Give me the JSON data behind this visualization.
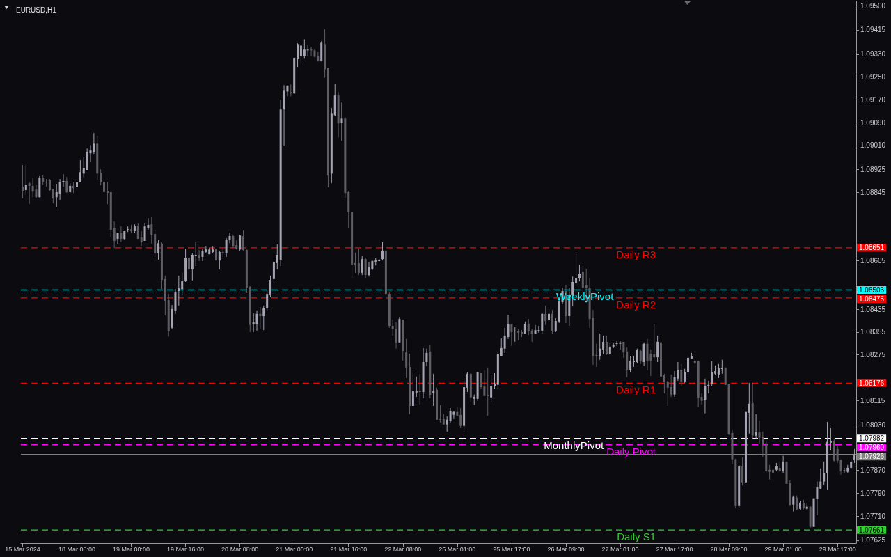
{
  "chart_data": {
    "type": "candlestick",
    "title": "EURUSD,H1",
    "categories": [
      "15 Mar 2024",
      null,
      null,
      null,
      null,
      null,
      null,
      null,
      null,
      null,
      null,
      null,
      null,
      null,
      null,
      null,
      "18 Mar 08:00",
      null,
      null,
      null,
      null,
      null,
      null,
      null,
      null,
      null,
      null,
      null,
      null,
      null,
      null,
      null,
      "19 Mar 00:00",
      null,
      null,
      null,
      null,
      null,
      null,
      null,
      null,
      null,
      null,
      null,
      null,
      null,
      null,
      null,
      "19 Mar 16:00",
      null,
      null,
      null,
      null,
      null,
      null,
      null,
      null,
      null,
      null,
      null,
      null,
      null,
      null,
      null,
      "20 Mar 08:00",
      null,
      null,
      null,
      null,
      null,
      null,
      null,
      null,
      null,
      null,
      null,
      null,
      null,
      null,
      null,
      "21 Mar 00:00",
      null,
      null,
      null,
      null,
      null,
      null,
      null,
      null,
      null,
      null,
      null,
      null,
      null,
      null,
      null,
      "21 Mar 16:00",
      null,
      null,
      null,
      null,
      null,
      null,
      null,
      null,
      null,
      null,
      null,
      null,
      null,
      null,
      null,
      "22 Mar 08:00",
      null,
      null,
      null,
      null,
      null,
      null,
      null,
      null,
      null,
      null,
      null,
      null,
      null,
      null,
      null,
      "25 Mar 01:00",
      null,
      null,
      null,
      null,
      null,
      null,
      null,
      null,
      null,
      null,
      null,
      null,
      null,
      null,
      null,
      "25 Mar 17:00",
      null,
      null,
      null,
      null,
      null,
      null,
      null,
      null,
      null,
      null,
      null,
      null,
      null,
      null,
      null,
      "26 Mar 09:00",
      null,
      null,
      null,
      null,
      null,
      null,
      null,
      null,
      null,
      null,
      null,
      null,
      null,
      null,
      null,
      "27 Mar 01:00",
      null,
      null,
      null,
      null,
      null,
      null,
      null,
      null,
      null,
      null,
      null,
      null,
      null,
      null,
      null,
      "27 Mar 17:00",
      null,
      null,
      null,
      null,
      null,
      null,
      null,
      null,
      null,
      null,
      null,
      null,
      null,
      null,
      null,
      "28 Mar 09:00",
      null,
      null,
      null,
      null,
      null,
      null,
      null,
      null,
      null,
      null,
      null,
      null,
      null,
      null,
      null,
      "29 Mar 01:00",
      null,
      null,
      null,
      null,
      null,
      null,
      null,
      null,
      null,
      null,
      null,
      null,
      null,
      null,
      null,
      "29 Mar 17:00",
      null,
      null,
      null,
      null,
      null
    ],
    "ohlc": [
      [
        1.08865,
        1.08941,
        1.08824,
        1.08848
      ],
      [
        1.08853,
        1.08936,
        1.08836,
        1.08872
      ],
      [
        1.08877,
        1.08882,
        1.08804,
        1.08868
      ],
      [
        1.08868,
        1.08894,
        1.08828,
        1.08848
      ],
      [
        1.08855,
        1.08872,
        1.08824,
        1.08828
      ],
      [
        1.08828,
        1.08902,
        1.08828,
        1.08897
      ],
      [
        1.08897,
        1.08907,
        1.08872,
        1.08882
      ],
      [
        1.08882,
        1.08892,
        1.08865,
        1.0888
      ],
      [
        1.08889,
        1.08892,
        1.0885,
        1.08853
      ],
      [
        1.08858,
        1.08858,
        1.08807,
        1.08824
      ],
      [
        1.08828,
        1.08875,
        1.08794,
        1.08846
      ],
      [
        1.08841,
        1.08892,
        1.08819,
        1.08882
      ],
      [
        1.0888,
        1.08909,
        1.08865,
        1.08885
      ],
      [
        1.08885,
        1.08899,
        1.08843,
        1.08846
      ],
      [
        1.08846,
        1.08877,
        1.08843,
        1.08868
      ],
      [
        1.08868,
        1.08882,
        1.08843,
        1.0886
      ],
      [
        1.08863,
        1.08887,
        1.0886,
        1.0888
      ],
      [
        1.0888,
        1.08958,
        1.0888,
        1.08916
      ],
      [
        1.08911,
        1.0897,
        1.08899,
        1.08931
      ],
      [
        1.08924,
        1.08999,
        1.08924,
        1.08987
      ],
      [
        1.08982,
        1.09011,
        1.08953,
        1.08992
      ],
      [
        1.08987,
        1.09053,
        1.0898,
        1.09016
      ],
      [
        1.09016,
        1.09043,
        1.08889,
        1.08911
      ],
      [
        1.08914,
        1.08926,
        1.0887,
        1.0888
      ],
      [
        1.08882,
        1.08926,
        1.08838,
        1.08846
      ],
      [
        1.0885,
        1.08882,
        1.08804,
        1.08843
      ],
      [
        1.08846,
        1.08846,
        1.08689,
        1.08714
      ],
      [
        1.08721,
        1.08743,
        1.0865,
        1.08675
      ],
      [
        1.08682,
        1.08704,
        1.08665,
        1.08702
      ],
      [
        1.08702,
        1.08726,
        1.0867,
        1.08682
      ],
      [
        1.08682,
        1.08709,
        1.0868,
        1.08709
      ],
      [
        1.08714,
        1.08726,
        1.08706,
        1.08716
      ],
      [
        1.08716,
        1.08731,
        1.08704,
        1.08709
      ],
      [
        1.08709,
        1.08733,
        1.08702,
        1.08726
      ],
      [
        1.08726,
        1.08736,
        1.08682,
        1.08682
      ],
      [
        1.08687,
        1.08709,
        1.08658,
        1.08672
      ],
      [
        1.08675,
        1.08738,
        1.08675,
        1.08726
      ],
      [
        1.08721,
        1.08755,
        1.08714,
        1.08731
      ],
      [
        1.08733,
        1.08758,
        1.08665,
        1.08697
      ],
      [
        1.08699,
        1.08714,
        1.08619,
        1.08631
      ],
      [
        1.08633,
        1.08677,
        1.08609,
        1.08667
      ],
      [
        1.08665,
        1.0867,
        1.08506,
        1.08538
      ],
      [
        1.08541,
        1.08553,
        1.08414,
        1.08465
      ],
      [
        1.08467,
        1.08489,
        1.0834,
        1.08358
      ],
      [
        1.0837,
        1.0845,
        1.08367,
        1.08436
      ],
      [
        1.08431,
        1.08506,
        1.08419,
        1.08494
      ],
      [
        1.08499,
        1.08553,
        1.08448,
        1.08509
      ],
      [
        1.08506,
        1.08563,
        1.08487,
        1.08533
      ],
      [
        1.08533,
        1.08648,
        1.08531,
        1.08616
      ],
      [
        1.08616,
        1.08616,
        1.08526,
        1.08575
      ],
      [
        1.08575,
        1.08631,
        1.08536,
        1.08626
      ],
      [
        1.08624,
        1.0867,
        1.08587,
        1.08626
      ],
      [
        1.08626,
        1.08643,
        1.08604,
        1.08614
      ],
      [
        1.08619,
        1.08648,
        1.08604,
        1.08641
      ],
      [
        1.08636,
        1.08655,
        1.08633,
        1.08645
      ],
      [
        1.08628,
        1.0865,
        1.08628,
        1.08645
      ],
      [
        1.08636,
        1.08655,
        1.08631,
        1.08645
      ],
      [
        1.08648,
        1.08658,
        1.08606,
        1.08606
      ],
      [
        1.08606,
        1.08641,
        1.08575,
        1.08636
      ],
      [
        1.08636,
        1.08648,
        1.08619,
        1.08633
      ],
      [
        1.08631,
        1.08685,
        1.08619,
        1.0868
      ],
      [
        1.0868,
        1.08704,
        1.08667,
        1.08692
      ],
      [
        1.08692,
        1.08697,
        1.0865,
        1.08655
      ],
      [
        1.0866,
        1.08677,
        1.08645,
        1.08648
      ],
      [
        1.08645,
        1.08697,
        1.08641,
        1.08694
      ],
      [
        1.08692,
        1.08711,
        1.08641,
        1.08643
      ],
      [
        1.08643,
        1.08645,
        1.08492,
        1.08511
      ],
      [
        1.08514,
        1.08516,
        1.08355,
        1.0838
      ],
      [
        1.08382,
        1.08421,
        1.08355,
        1.08389
      ],
      [
        1.08384,
        1.08431,
        1.0836,
        1.08419
      ],
      [
        1.08419,
        1.08443,
        1.08367,
        1.08411
      ],
      [
        1.08411,
        1.08448,
        1.08362,
        1.08438
      ],
      [
        1.08438,
        1.08502,
        1.08428,
        1.08489
      ],
      [
        1.08487,
        1.08553,
        1.08477,
        1.08538
      ],
      [
        1.08541,
        1.08604,
        1.08526,
        1.08599
      ],
      [
        1.08597,
        1.08663,
        1.08575,
        1.08626
      ],
      [
        1.08609,
        1.0917,
        1.08587,
        1.09136
      ],
      [
        1.09136,
        1.09221,
        1.09009,
        1.09204
      ],
      [
        1.09199,
        1.09221,
        1.09182,
        1.09219
      ],
      [
        1.09197,
        1.09224,
        1.09182,
        1.09192
      ],
      [
        1.09192,
        1.09319,
        1.0919,
        1.09316
      ],
      [
        1.09312,
        1.09368,
        1.09285,
        1.09365
      ],
      [
        1.09324,
        1.09365,
        1.09297,
        1.0936
      ],
      [
        1.09324,
        1.09382,
        1.09314,
        1.09346
      ],
      [
        1.09343,
        1.09363,
        1.09324,
        1.09346
      ],
      [
        1.09346,
        1.09356,
        1.09324,
        1.09343
      ],
      [
        1.09343,
        1.09348,
        1.09319,
        1.09321
      ],
      [
        1.09324,
        1.09338,
        1.09304,
        1.09307
      ],
      [
        1.09307,
        1.09375,
        1.09304,
        1.0937
      ],
      [
        1.09365,
        1.09417,
        1.09248,
        1.09277
      ],
      [
        1.09282,
        1.09282,
        1.08863,
        1.08904
      ],
      [
        1.08911,
        1.09141,
        1.08877,
        1.09121
      ],
      [
        1.09116,
        1.09226,
        1.09112,
        1.09185
      ],
      [
        1.09185,
        1.09197,
        1.09038,
        1.09087
      ],
      [
        1.0909,
        1.0916,
        1.09026,
        1.09104
      ],
      [
        1.09104,
        1.09109,
        1.08826,
        1.08843
      ],
      [
        1.08846,
        1.0885,
        1.08719,
        1.08775
      ],
      [
        1.08777,
        1.08777,
        1.08545,
        1.08592
      ],
      [
        1.08597,
        1.08633,
        1.08563,
        1.08589
      ],
      [
        1.08597,
        1.08648,
        1.08555,
        1.08563
      ],
      [
        1.08563,
        1.08621,
        1.08555,
        1.08611
      ],
      [
        1.08611,
        1.08616,
        1.08543,
        1.08555
      ],
      [
        1.08555,
        1.08602,
        1.0855,
        1.08582
      ],
      [
        1.08577,
        1.08606,
        1.08572,
        1.08604
      ],
      [
        1.08602,
        1.08616,
        1.08589,
        1.08606
      ],
      [
        1.08604,
        1.08616,
        1.08599,
        1.08609
      ],
      [
        1.08611,
        1.0867,
        1.08606,
        1.08641
      ],
      [
        1.08641,
        1.08641,
        1.08484,
        1.08489
      ],
      [
        1.08489,
        1.08494,
        1.0837,
        1.08377
      ],
      [
        1.08377,
        1.08399,
        1.08343,
        1.08367
      ],
      [
        1.08367,
        1.08389,
        1.08297,
        1.08319
      ],
      [
        1.08319,
        1.08406,
        1.08319,
        1.08401
      ],
      [
        1.08399,
        1.08399,
        1.08255,
        1.08289
      ],
      [
        1.08284,
        1.08331,
        1.08194,
        1.08231
      ],
      [
        1.08233,
        1.08279,
        1.08067,
        1.08096
      ],
      [
        1.08096,
        1.08216,
        1.08096,
        1.08148
      ],
      [
        1.08143,
        1.08199,
        1.08128,
        1.0815
      ],
      [
        1.0815,
        1.08209,
        1.08101,
        1.08145
      ],
      [
        1.08145,
        1.08299,
        1.08123,
        1.0825
      ],
      [
        1.0825,
        1.08297,
        1.08236,
        1.08282
      ],
      [
        1.08287,
        1.08309,
        1.08123,
        1.08133
      ],
      [
        1.0814,
        1.08209,
        1.08096,
        1.0815
      ],
      [
        1.08153,
        1.0816,
        1.08048,
        1.08048
      ],
      [
        1.0805,
        1.08099,
        1.08038,
        1.08048
      ],
      [
        1.0805,
        1.08067,
        1.08031,
        1.08031
      ],
      [
        1.08031,
        1.0806,
        1.08006,
        1.08048
      ],
      [
        1.08043,
        1.08089,
        1.08038,
        1.08079
      ],
      [
        1.08065,
        1.08079,
        1.0805,
        1.08075
      ],
      [
        1.08075,
        1.08092,
        1.0806,
        1.08062
      ],
      [
        1.08065,
        1.08089,
        1.08018,
        1.08026
      ],
      [
        1.08026,
        1.08189,
        1.08014,
        1.08162
      ],
      [
        1.0816,
        1.08214,
        1.08145,
        1.08209
      ],
      [
        1.08209,
        1.08211,
        1.08109,
        1.08126
      ],
      [
        1.08121,
        1.08136,
        1.08099,
        1.08128
      ],
      [
        1.08121,
        1.08216,
        1.08114,
        1.08214
      ],
      [
        1.08211,
        1.08211,
        1.08155,
        1.08162
      ],
      [
        1.08165,
        1.08221,
        1.08131,
        1.08131
      ],
      [
        1.08133,
        1.08231,
        1.08062,
        1.08131
      ],
      [
        1.08126,
        1.08206,
        1.08109,
        1.08167
      ],
      [
        1.08165,
        1.08211,
        1.08155,
        1.08172
      ],
      [
        1.0817,
        1.08287,
        1.08157,
        1.08277
      ],
      [
        1.08272,
        1.08333,
        1.0827,
        1.08299
      ],
      [
        1.08297,
        1.0837,
        1.08282,
        1.08343
      ],
      [
        1.08338,
        1.08416,
        1.08331,
        1.08382
      ],
      [
        1.08384,
        1.08384,
        1.08306,
        1.08355
      ],
      [
        1.08358,
        1.08372,
        1.08321,
        1.0836
      ],
      [
        1.0836,
        1.08367,
        1.08326,
        1.08353
      ],
      [
        1.08355,
        1.08362,
        1.08338,
        1.08348
      ],
      [
        1.0835,
        1.08392,
        1.08348,
        1.08384
      ],
      [
        1.08384,
        1.08401,
        1.08345,
        1.08358
      ],
      [
        1.0836,
        1.08365,
        1.08321,
        1.0835
      ],
      [
        1.0835,
        1.0838,
        1.08348,
        1.08362
      ],
      [
        1.0836,
        1.08377,
        1.08353,
        1.08362
      ],
      [
        1.0836,
        1.08421,
        1.0835,
        1.08419
      ],
      [
        1.08419,
        1.08448,
        1.0838,
        1.08394
      ],
      [
        1.08397,
        1.08436,
        1.08389,
        1.08419
      ],
      [
        1.08419,
        1.08433,
        1.08348,
        1.0836
      ],
      [
        1.0836,
        1.08404,
        1.08355,
        1.08394
      ],
      [
        1.08392,
        1.08475,
        1.08387,
        1.08465
      ],
      [
        1.0846,
        1.08511,
        1.08453,
        1.08499
      ],
      [
        1.08499,
        1.08521,
        1.08387,
        1.08411
      ],
      [
        1.08411,
        1.08511,
        1.08377,
        1.08487
      ],
      [
        1.08484,
        1.0855,
        1.08445,
        1.08531
      ],
      [
        1.08526,
        1.08636,
        1.08521,
        1.08545
      ],
      [
        1.08543,
        1.08592,
        1.08533,
        1.0856
      ],
      [
        1.08567,
        1.08587,
        1.08477,
        1.08511
      ],
      [
        1.08519,
        1.08577,
        1.08458,
        1.08511
      ],
      [
        1.08509,
        1.08543,
        1.0837,
        1.08401
      ],
      [
        1.08404,
        1.08433,
        1.0824,
        1.08272
      ],
      [
        1.08275,
        1.08314,
        1.08233,
        1.08272
      ],
      [
        1.08272,
        1.0835,
        1.08258,
        1.08297
      ],
      [
        1.08294,
        1.08343,
        1.08279,
        1.08321
      ],
      [
        1.08321,
        1.08343,
        1.08275,
        1.08277
      ],
      [
        1.08277,
        1.08316,
        1.08275,
        1.08304
      ],
      [
        1.08304,
        1.08316,
        1.08299,
        1.08309
      ],
      [
        1.08314,
        1.08323,
        1.08306,
        1.08316
      ],
      [
        1.08314,
        1.08323,
        1.08294,
        1.08319
      ],
      [
        1.08321,
        1.08321,
        1.08265,
        1.08284
      ],
      [
        1.08287,
        1.08301,
        1.08197,
        1.08223
      ],
      [
        1.08223,
        1.0827,
        1.08214,
        1.08253
      ],
      [
        1.0825,
        1.08272,
        1.08233,
        1.08255
      ],
      [
        1.0825,
        1.08297,
        1.08245,
        1.08292
      ],
      [
        1.08289,
        1.08294,
        1.08243,
        1.08253
      ],
      [
        1.0825,
        1.08319,
        1.08236,
        1.08314
      ],
      [
        1.08314,
        1.08331,
        1.08221,
        1.08253
      ],
      [
        1.08279,
        1.08294,
        1.08201,
        1.08255
      ],
      [
        1.08277,
        1.08384,
        1.08258,
        1.08267
      ],
      [
        1.08267,
        1.08343,
        1.0825,
        1.08321
      ],
      [
        1.08319,
        1.08343,
        1.08172,
        1.08199
      ],
      [
        1.08204,
        1.08209,
        1.0814,
        1.08179
      ],
      [
        1.08182,
        1.08184,
        1.08096,
        1.0816
      ],
      [
        1.08162,
        1.08206,
        1.08128,
        1.08136
      ],
      [
        1.08136,
        1.08218,
        1.08128,
        1.08197
      ],
      [
        1.08192,
        1.0825,
        1.08184,
        1.08223
      ],
      [
        1.08223,
        1.08243,
        1.08165,
        1.08182
      ],
      [
        1.08182,
        1.08226,
        1.08177,
        1.08214
      ],
      [
        1.08214,
        1.0827,
        1.08197,
        1.08265
      ],
      [
        1.08262,
        1.08282,
        1.08262,
        1.08272
      ],
      [
        1.08255,
        1.08262,
        1.08243,
        1.08245
      ],
      [
        1.08253,
        1.08255,
        1.08092,
        1.08126
      ],
      [
        1.08128,
        1.0814,
        1.08101,
        1.08114
      ],
      [
        1.08118,
        1.08192,
        1.0807,
        1.08167
      ],
      [
        1.08165,
        1.08184,
        1.0814,
        1.0817
      ],
      [
        1.08172,
        1.08253,
        1.08165,
        1.08214
      ],
      [
        1.08209,
        1.08238,
        1.08206,
        1.08218
      ],
      [
        1.08206,
        1.08243,
        1.08194,
        1.08228
      ],
      [
        1.08226,
        1.08258,
        1.08209,
        1.08228
      ],
      [
        1.08231,
        1.08231,
        1.0817,
        1.0817
      ],
      [
        1.08172,
        1.08172,
        1.07994,
        1.07996
      ],
      [
        1.08001,
        1.08014,
        1.07892,
        1.07909
      ],
      [
        1.07909,
        1.07911,
        1.07738,
        1.07745
      ],
      [
        1.07745,
        1.07889,
        1.0774,
        1.07884
      ],
      [
        1.07884,
        1.07916,
        1.07818,
        1.07828
      ],
      [
        1.07828,
        1.08084,
        1.07828,
        1.08075
      ],
      [
        1.08072,
        1.08177,
        1.07999,
        1.08104
      ],
      [
        1.08106,
        1.08177,
        1.07982,
        1.07992
      ],
      [
        1.07992,
        1.08067,
        1.07982,
        1.08004
      ],
      [
        1.08004,
        1.08045,
        1.07962,
        1.07984
      ],
      [
        1.07989,
        1.08006,
        1.07918,
        1.07962
      ],
      [
        1.07965,
        1.07974,
        1.0786,
        1.07867
      ],
      [
        1.07872,
        1.07889,
        1.07838,
        1.07865
      ],
      [
        1.07872,
        1.07884,
        1.0784,
        1.0786
      ],
      [
        1.07872,
        1.07896,
        1.07867,
        1.07884
      ],
      [
        1.07879,
        1.07901,
        1.07865,
        1.07867
      ],
      [
        1.07867,
        1.07921,
        1.0786,
        1.07901
      ],
      [
        1.07901,
        1.07901,
        1.07823,
        1.07823
      ],
      [
        1.07826,
        1.07835,
        1.07745,
        1.07748
      ],
      [
        1.0775,
        1.07782,
        1.07726,
        1.07777
      ],
      [
        1.07774,
        1.07782,
        1.07733,
        1.07733
      ],
      [
        1.07735,
        1.07762,
        1.07733,
        1.07757
      ],
      [
        1.07757,
        1.07767,
        1.07733,
        1.07738
      ],
      [
        1.07735,
        1.07757,
        1.07733,
        1.07743
      ],
      [
        1.07743,
        1.07743,
        1.07669,
        1.07672
      ],
      [
        1.07672,
        1.07772,
        1.07672,
        1.07772
      ],
      [
        1.0777,
        1.07831,
        1.07713,
        1.07811
      ],
      [
        1.07806,
        1.07877,
        1.07804,
        1.07831
      ],
      [
        1.07831,
        1.07901,
        1.07818,
        1.0786
      ],
      [
        1.0786,
        1.0804,
        1.07801,
        1.0797
      ],
      [
        1.07967,
        1.08018,
        1.0794,
        1.07972
      ],
      [
        1.07974,
        1.07982,
        1.07901,
        1.07904
      ],
      [
        1.07945,
        1.0796,
        1.07896,
        1.07904
      ],
      [
        1.07906,
        1.07909,
        1.07855,
        1.07867
      ],
      [
        1.07867,
        1.07879,
        1.0786,
        1.0787
      ],
      [
        1.07865,
        1.07889,
        1.0786,
        1.07879
      ],
      [
        1.07879,
        1.07909,
        1.07877,
        1.07899
      ],
      [
        1.07906,
        1.07945,
        1.07896,
        1.07926
      ]
    ],
    "ylim": [
      1.07615,
      1.09515
    ],
    "yticks": [
      {
        "value": 1.07625,
        "label": "1.07625"
      },
      {
        "value": 1.0771,
        "label": "1.07710"
      },
      {
        "value": 1.0779,
        "label": "1.07790"
      },
      {
        "value": 1.0787,
        "label": "1.07870"
      },
      {
        "value": 1.0803,
        "label": "1.08030"
      },
      {
        "value": 1.08115,
        "label": "1.08115"
      },
      {
        "value": 1.08275,
        "label": "1.08275"
      },
      {
        "value": 1.08355,
        "label": "1.08355"
      },
      {
        "value": 1.08435,
        "label": "1.08435"
      },
      {
        "value": 1.08605,
        "label": "1.08605"
      },
      {
        "value": 1.08845,
        "label": "1.08845"
      },
      {
        "value": 1.08925,
        "label": "1.08925"
      },
      {
        "value": 1.0901,
        "label": "1.09010"
      },
      {
        "value": 1.0909,
        "label": "1.09090"
      },
      {
        "value": 1.0917,
        "label": "1.09170"
      },
      {
        "value": 1.0925,
        "label": "1.09250"
      },
      {
        "value": 1.0933,
        "label": "1.09330"
      },
      {
        "value": 1.09415,
        "label": "1.09415"
      },
      {
        "value": 1.095,
        "label": "1.09500"
      }
    ],
    "ref_lines": [
      {
        "axis": "y",
        "value": 1.08651,
        "label": "Daily R3",
        "color": "#ff0000",
        "line_style": "dashed"
      },
      {
        "axis": "y",
        "value": 1.08475,
        "label": "Daily R2",
        "color": "#ff0000",
        "line_style": "dashed"
      },
      {
        "axis": "y",
        "value": 1.08503,
        "label": "WeeklyPivot",
        "color": "#00ffff",
        "line_style": "dashed"
      },
      {
        "axis": "y",
        "value": 1.08176,
        "label": "Daily R1",
        "color": "#ff0000",
        "line_style": "dashed"
      },
      {
        "axis": "y",
        "value": 1.0796,
        "label": "Daily Pivot",
        "color": "#ff00ff",
        "line_style": "dashed"
      },
      {
        "axis": "y",
        "value": 1.07982,
        "label": "MonthlyPivot",
        "color": "#ffffff",
        "line_style": "dashed"
      },
      {
        "axis": "y",
        "value": 1.07661,
        "label": "Daily S1",
        "color": "#32cd32",
        "line_style": "dashed"
      },
      {
        "axis": "y",
        "value": 1.07926,
        "label": null,
        "color": "#808080",
        "line_style": "solid"
      }
    ],
    "annotations": [
      "1.08651",
      "1.08475",
      "1.08503",
      "1.08176",
      "1.07960",
      "1.07982",
      "1.07661",
      "1.07926"
    ],
    "grid": false
  }
}
